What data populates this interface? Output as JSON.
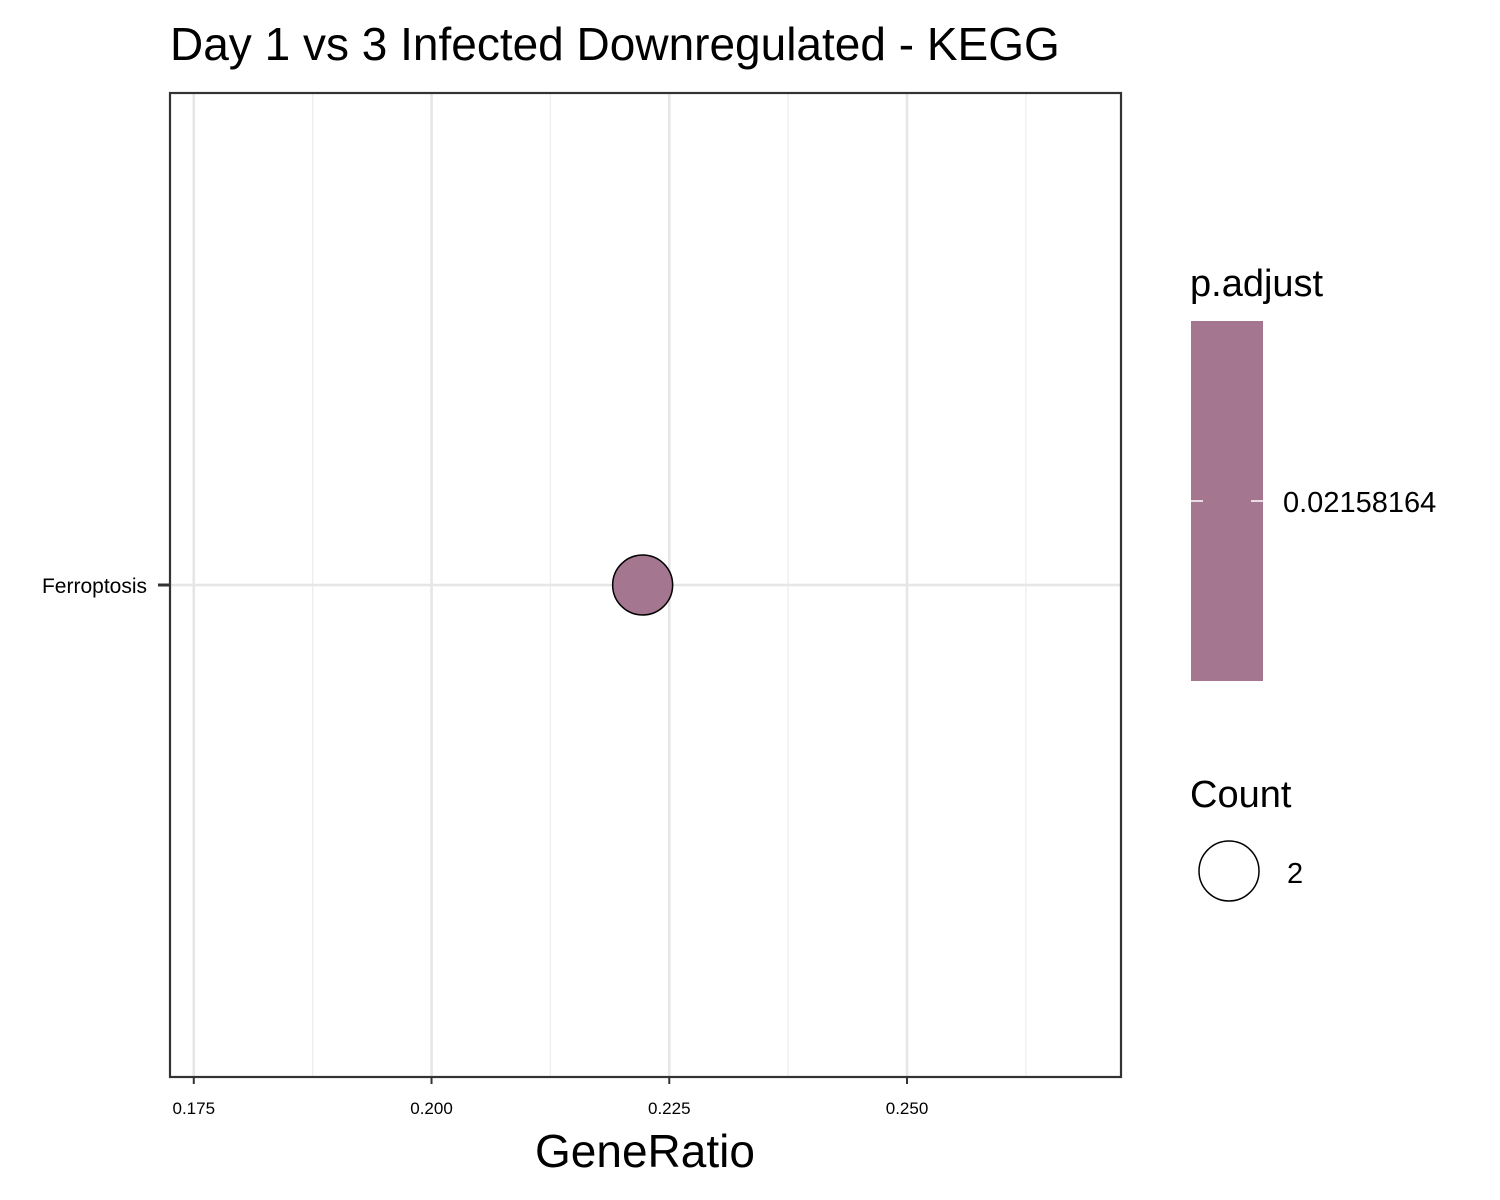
{
  "chart_data": {
    "type": "scatter",
    "title": "Day 1 vs 3 Infected Downregulated - KEGG",
    "xlabel": "GeneRatio",
    "ylabel": "",
    "xlim": [
      0.1725,
      0.2725
    ],
    "x_ticks": [
      0.175,
      0.2,
      0.225,
      0.25
    ],
    "x_tick_labels": [
      "0.175",
      "0.200",
      "0.225",
      "0.250"
    ],
    "categories": [
      "Ferroptosis"
    ],
    "points": [
      {
        "category": "Ferroptosis",
        "x": 0.2222,
        "count": 2,
        "p_adjust": 0.02158164
      }
    ],
    "grid": true,
    "point_color": "#a4768f",
    "legend_placement": "right",
    "legends": {
      "color": {
        "title": "p.adjust",
        "label": "0.02158164",
        "color": "#a4768f"
      },
      "size": {
        "title": "Count",
        "label": "2"
      }
    }
  }
}
